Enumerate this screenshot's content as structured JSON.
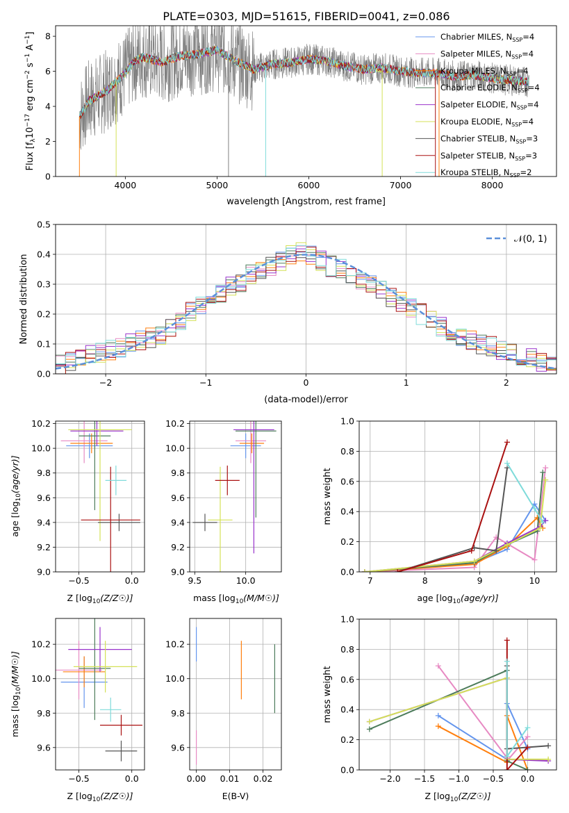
{
  "figure": {
    "title": "PLATE=0303, MJD=51615, FIBERID=0041, z=0.086"
  },
  "chart_data": [
    {
      "panel": "spectrum",
      "type": "line",
      "xlabel": "wavelength [Angstrom, rest frame]",
      "ylabel": "Flux [f",
      "xlim": [
        3240,
        8700
      ],
      "ylim": [
        0,
        8.6
      ],
      "xticks": [
        4000,
        5000,
        6000,
        7000,
        8000
      ],
      "yticks": [
        0,
        2,
        4,
        6,
        8
      ],
      "grid": false,
      "legend_position": "top-right",
      "data_points": {
        "x": [
          3500,
          3600,
          3700,
          3800,
          3900,
          4000,
          4100,
          4200,
          4400,
          4600,
          4800,
          5000,
          5200,
          5400,
          5600,
          5800,
          6000,
          6200,
          6400,
          6600,
          6800,
          7000,
          7200,
          7400,
          7600,
          7800,
          8000,
          8200,
          8400
        ],
        "y": [
          3.4,
          4.3,
          4.6,
          4.9,
          5.4,
          5.9,
          6.6,
          6.8,
          6.5,
          6.9,
          7.0,
          7.2,
          6.6,
          6.1,
          6.4,
          6.5,
          6.7,
          6.6,
          6.3,
          6.1,
          6.2,
          6.0,
          5.9,
          5.9,
          5.7,
          5.8,
          5.6,
          5.5,
          5.4
        ]
      },
      "legend": [
        {
          "prefix": "Chabrier MILES, N",
          "suffix": "=4",
          "color": "#6495ed"
        },
        {
          "prefix": "Salpeter MILES, N",
          "suffix": "=4",
          "color": "#e78ac3"
        },
        {
          "prefix": "Kroupa MILES, N",
          "suffix": "=4",
          "color": "#ff7f0e"
        },
        {
          "prefix": "Chabrier ELODIE, N",
          "suffix": "=4",
          "color": "#4d7c5b"
        },
        {
          "prefix": "Salpeter ELODIE, N",
          "suffix": "=4",
          "color": "#9933cc"
        },
        {
          "prefix": "Kroupa ELODIE, N",
          "suffix": "=4",
          "color": "#d4e157"
        },
        {
          "prefix": "Chabrier STELIB, N",
          "suffix": "=3",
          "color": "#555555"
        },
        {
          "prefix": "Salpeter STELIB, N",
          "suffix": "=3",
          "color": "#aa1111"
        },
        {
          "prefix": "Kroupa STELIB, N",
          "suffix": "=2",
          "color": "#7fdbda"
        }
      ]
    },
    {
      "panel": "residuals",
      "type": "line",
      "xlabel": "(data-model)/error",
      "ylabel": "Normed distribution",
      "xlim": [
        -2.5,
        2.5
      ],
      "ylim": [
        0,
        0.5
      ],
      "xticks": [
        -2,
        -1,
        0,
        1,
        2
      ],
      "yticks": [
        0.0,
        0.1,
        0.2,
        0.3,
        0.4,
        0.5
      ],
      "grid": true,
      "legend_position": "top-right",
      "legend_label": "𝒩(0, 1)",
      "bins": [
        -2.45,
        -2.35,
        -2.25,
        -2.15,
        -2.05,
        -1.95,
        -1.85,
        -1.75,
        -1.65,
        -1.55,
        -1.45,
        -1.35,
        -1.25,
        -1.15,
        -1.05,
        -0.95,
        -0.85,
        -0.75,
        -0.65,
        -0.55,
        -0.45,
        -0.35,
        -0.25,
        -0.15,
        -0.05,
        0.05,
        0.15,
        0.25,
        0.35,
        0.45,
        0.55,
        0.65,
        0.75,
        0.85,
        0.95,
        1.05,
        1.15,
        1.25,
        1.35,
        1.45,
        1.55,
        1.65,
        1.75,
        1.85,
        1.95,
        2.05,
        2.15,
        2.25,
        2.35,
        2.45
      ],
      "series": [
        {
          "values": [
            0.03,
            0.04,
            0.05,
            0.06,
            0.07,
            0.08,
            0.09,
            0.1,
            0.11,
            0.12,
            0.13,
            0.15,
            0.17,
            0.21,
            0.23,
            0.25,
            0.27,
            0.29,
            0.31,
            0.33,
            0.35,
            0.36,
            0.38,
            0.4,
            0.41,
            0.4,
            0.38,
            0.36,
            0.35,
            0.33,
            0.31,
            0.3,
            0.28,
            0.26,
            0.24,
            0.22,
            0.2,
            0.18,
            0.16,
            0.14,
            0.12,
            0.11,
            0.1,
            0.09,
            0.08,
            0.07,
            0.06,
            0.05,
            0.04,
            0.03
          ]
        }
      ]
    },
    {
      "panel": "age-vs-Z",
      "type": "scatter",
      "xlabel": "Z [log",
      "ylabel": "age  [log",
      "xlim": [
        -0.72,
        0.12
      ],
      "ylim": [
        9.0,
        10.22
      ],
      "xticks": [
        -0.5,
        0.0
      ],
      "yticks": [
        9.0,
        9.2,
        9.4,
        9.6,
        9.8,
        10.0,
        10.2
      ],
      "grid": true,
      "points": [
        {
          "x": -0.4,
          "y": 10.02,
          "xerr": 0.22,
          "yerr": 0.1
        },
        {
          "x": -0.45,
          "y": 10.06,
          "xerr": 0.22,
          "yerr": 0.18
        },
        {
          "x": -0.38,
          "y": 10.04,
          "xerr": 0.2,
          "yerr": 0.08
        },
        {
          "x": -0.35,
          "y": 10.1,
          "xerr": 0.15,
          "yerr": 0.6
        },
        {
          "x": -0.33,
          "y": 10.14,
          "xerr": 0.25,
          "yerr": 0.12
        },
        {
          "x": -0.3,
          "y": 10.15,
          "xerr": 0.3,
          "yerr": 0.9
        },
        {
          "x": -0.12,
          "y": 9.4,
          "xerr": 0.2,
          "yerr": 0.07
        },
        {
          "x": -0.2,
          "y": 9.42,
          "xerr": 0.28,
          "yerr": 0.43
        },
        {
          "x": -0.15,
          "y": 9.74,
          "xerr": 0.1,
          "yerr": 0.12
        }
      ]
    },
    {
      "panel": "age-vs-mass",
      "type": "scatter",
      "xlabel": "mass [log",
      "ylabel": "",
      "xlim": [
        9.45,
        10.35
      ],
      "ylim": [
        9.0,
        10.22
      ],
      "xticks": [
        9.5,
        10.0
      ],
      "yticks": [
        9.0,
        9.2,
        9.4,
        9.6,
        9.8,
        10.0,
        10.2
      ],
      "grid": true,
      "points": [
        {
          "x": 10.0,
          "y": 10.02,
          "xerr": 0.15,
          "yerr": 0.1
        },
        {
          "x": 10.05,
          "y": 10.06,
          "xerr": 0.15,
          "yerr": 0.18
        },
        {
          "x": 10.06,
          "y": 10.04,
          "xerr": 0.12,
          "yerr": 0.08
        },
        {
          "x": 10.1,
          "y": 10.14,
          "xerr": 0.2,
          "yerr": 0.7
        },
        {
          "x": 10.08,
          "y": 10.15,
          "xerr": 0.2,
          "yerr": 1.0
        },
        {
          "x": 9.75,
          "y": 9.42,
          "xerr": 0.12,
          "yerr": 0.43
        },
        {
          "x": 9.6,
          "y": 9.4,
          "xerr": 0.12,
          "yerr": 0.07
        },
        {
          "x": 9.82,
          "y": 9.74,
          "xerr": 0.12,
          "yerr": 0.12
        }
      ]
    },
    {
      "panel": "weight-vs-age",
      "type": "line",
      "xlabel": "age  [log",
      "ylabel": "mass weight",
      "xlim": [
        6.8,
        10.4
      ],
      "ylim": [
        0.0,
        1.0
      ],
      "xticks": [
        7,
        8,
        9,
        10
      ],
      "yticks": [
        0.0,
        0.2,
        0.4,
        0.6,
        0.8,
        1.0
      ],
      "grid": true,
      "series": [
        {
          "x": [
            6.9,
            8.9,
            9.5,
            10.0,
            10.2
          ],
          "y": [
            0.0,
            0.06,
            0.15,
            0.45,
            0.34
          ]
        },
        {
          "x": [
            6.9,
            8.9,
            9.3,
            10.0,
            10.2
          ],
          "y": [
            0.0,
            0.03,
            0.23,
            0.08,
            0.69
          ]
        },
        {
          "x": [
            6.9,
            8.9,
            9.5,
            10.05,
            10.15
          ],
          "y": [
            0.0,
            0.05,
            0.17,
            0.36,
            0.29
          ]
        },
        {
          "x": [
            6.9,
            8.9,
            9.5,
            10.05,
            10.15
          ],
          "y": [
            0.0,
            0.06,
            0.18,
            0.27,
            0.66
          ]
        },
        {
          "x": [
            6.9,
            8.9,
            9.5,
            10.1,
            10.2
          ],
          "y": [
            0.0,
            0.07,
            0.19,
            0.3,
            0.34
          ]
        },
        {
          "x": [
            6.9,
            8.9,
            9.5,
            10.1,
            10.2
          ],
          "y": [
            0.0,
            0.07,
            0.18,
            0.29,
            0.61
          ]
        },
        {
          "x": [
            7.5,
            8.9,
            9.3,
            9.5
          ],
          "y": [
            0.0,
            0.16,
            0.14,
            0.69
          ]
        },
        {
          "x": [
            7.5,
            8.85,
            9.5
          ],
          "y": [
            0.0,
            0.14,
            0.86
          ]
        },
        {
          "x": [
            9.5,
            10.0,
            10.15
          ],
          "y": [
            0.72,
            0.42,
            0.33
          ]
        }
      ]
    },
    {
      "panel": "mass-vs-Z",
      "type": "scatter",
      "xlabel": "Z [log",
      "ylabel": "mass [log",
      "xlim": [
        -0.72,
        0.12
      ],
      "ylim": [
        9.47,
        10.35
      ],
      "xticks": [
        -0.5,
        0.0
      ],
      "yticks": [
        9.6,
        9.8,
        10.0,
        10.2
      ],
      "grid": true,
      "points": [
        {
          "x": -0.45,
          "y": 9.98,
          "xerr": 0.22,
          "yerr": 0.15
        },
        {
          "x": -0.5,
          "y": 10.05,
          "xerr": 0.22,
          "yerr": 0.17
        },
        {
          "x": -0.45,
          "y": 10.04,
          "xerr": 0.2,
          "yerr": 0.09
        },
        {
          "x": -0.35,
          "y": 10.06,
          "xerr": 0.15,
          "yerr": 0.3
        },
        {
          "x": -0.3,
          "y": 10.17,
          "xerr": 0.3,
          "yerr": 0.13
        },
        {
          "x": -0.25,
          "y": 10.07,
          "xerr": 0.3,
          "yerr": 0.15
        },
        {
          "x": -0.1,
          "y": 9.58,
          "xerr": 0.15,
          "yerr": 0.06
        },
        {
          "x": -0.1,
          "y": 9.73,
          "xerr": 0.2,
          "yerr": 0.06
        },
        {
          "x": -0.2,
          "y": 9.82,
          "xerr": 0.1,
          "yerr": 0.07
        }
      ]
    },
    {
      "panel": "mass-vs-ebv",
      "type": "scatter",
      "xlabel": "E(B-V)",
      "ylabel": "",
      "xlim": [
        -0.002,
        0.0255
      ],
      "ylim": [
        9.47,
        10.35
      ],
      "xticks": [
        0.0,
        0.01,
        0.02
      ],
      "yticks": [
        9.6,
        9.8,
        10.0,
        10.2
      ],
      "grid": true,
      "points": [
        {
          "x": 0.0,
          "y": 10.2,
          "xerr": 0,
          "yerr": 0.1
        },
        {
          "x": 0.0,
          "y": 9.6,
          "xerr": 0,
          "yerr": 0.1
        },
        {
          "x": 0.0135,
          "y": 10.05,
          "xerr": 0,
          "yerr": 0.17
        },
        {
          "x": 0.0235,
          "y": 10.0,
          "xerr": 0,
          "yerr": 0.2
        }
      ]
    },
    {
      "panel": "weight-vs-Z",
      "type": "line",
      "xlabel": "Z [log",
      "ylabel": "mass weight",
      "xlim": [
        -2.45,
        0.42
      ],
      "ylim": [
        0.0,
        1.0
      ],
      "xticks": [
        -2.0,
        -1.5,
        -1.0,
        -0.5,
        0.0
      ],
      "yticks": [
        0.0,
        0.2,
        0.4,
        0.6,
        0.8,
        1.0
      ],
      "grid": true,
      "series": [
        {
          "x": [
            -1.3,
            -0.3,
            -0.3,
            0.0
          ],
          "y": [
            0.36,
            0.07,
            0.44,
            0.14
          ]
        },
        {
          "x": [
            -1.3,
            -0.3,
            -0.3,
            0.0
          ],
          "y": [
            0.69,
            0.08,
            0.06,
            0.22
          ]
        },
        {
          "x": [
            -1.3,
            -0.3,
            -0.3,
            0.0
          ],
          "y": [
            0.29,
            0.05,
            0.36,
            0.0
          ]
        },
        {
          "x": [
            -2.3,
            -0.3,
            -0.3,
            0.0
          ],
          "y": [
            0.27,
            0.66,
            0.06,
            0.0
          ]
        },
        {
          "x": [
            -2.3,
            -0.3,
            -0.3,
            0.3
          ],
          "y": [
            0.32,
            0.61,
            0.07,
            0.06
          ]
        },
        {
          "x": [
            -2.3,
            -0.3,
            -0.3,
            0.3
          ],
          "y": [
            0.32,
            0.61,
            0.07,
            0.07
          ]
        },
        {
          "x": [
            -0.3,
            -0.3,
            0.3
          ],
          "y": [
            0.69,
            0.14,
            0.16
          ]
        },
        {
          "x": [
            -0.3,
            -0.3,
            0.0
          ],
          "y": [
            0.86,
            0.0,
            0.15
          ]
        },
        {
          "x": [
            -0.3,
            -0.3,
            0.0
          ],
          "y": [
            0.72,
            0.09,
            0.28
          ]
        }
      ]
    }
  ]
}
